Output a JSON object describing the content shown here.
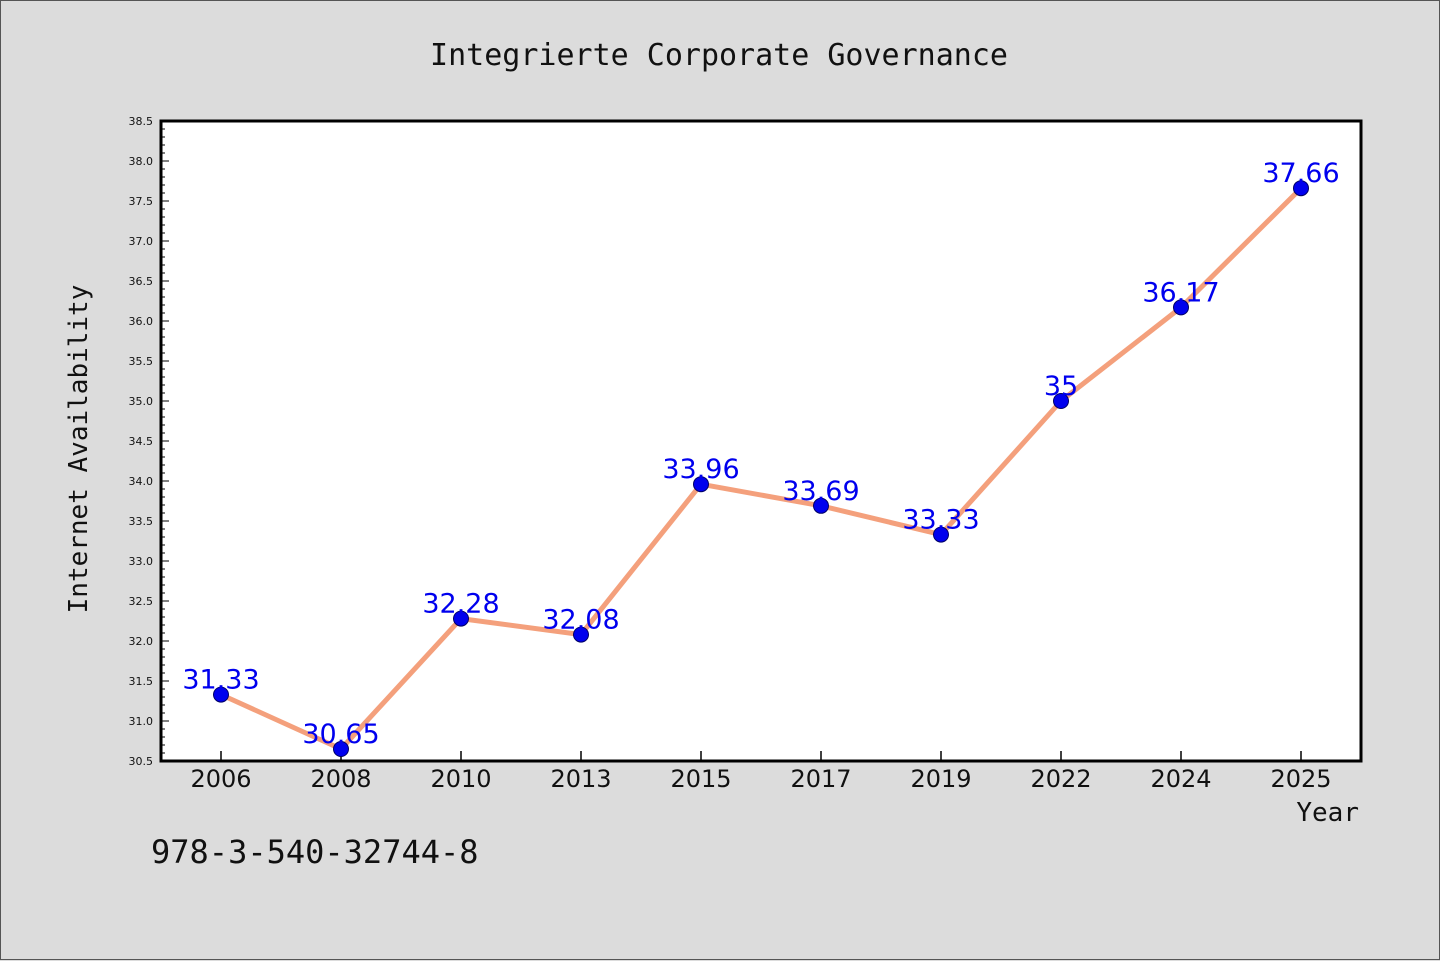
{
  "chart_data": {
    "type": "line",
    "title": "Integrierte Corporate Governance",
    "xlabel": "Year",
    "ylabel": "Internet Availability",
    "categories": [
      "2006",
      "2008",
      "2010",
      "2013",
      "2015",
      "2017",
      "2019",
      "2022",
      "2024",
      "2025"
    ],
    "series": [
      {
        "values": [
          31.33,
          30.65,
          32.28,
          32.08,
          33.96,
          33.69,
          33.33,
          35,
          36.17,
          37.66
        ],
        "data_labels": [
          "31.33",
          "30.65",
          "32.28",
          "32.08",
          "33.96",
          "33.69",
          "33.33",
          "35",
          "36.17",
          "37.66"
        ]
      }
    ],
    "ylim": [
      30.5,
      38.5
    ],
    "yticks": [
      "30.5",
      "31.0",
      "31.5",
      "32.0",
      "32.5",
      "33.0",
      "33.5",
      "34.0",
      "34.5",
      "35.0",
      "35.5",
      "36.0",
      "36.5",
      "37.0",
      "37.5",
      "38.0",
      "38.5"
    ],
    "grid": false,
    "colors": {
      "line": "#f4a07c",
      "marker": "#0000ee",
      "marker_edge": "#000066",
      "data_label": "#0000ee",
      "background": "#dcdcdc",
      "plot_background": "#ffffff"
    }
  },
  "footer_text": "978-3-540-32744-8"
}
